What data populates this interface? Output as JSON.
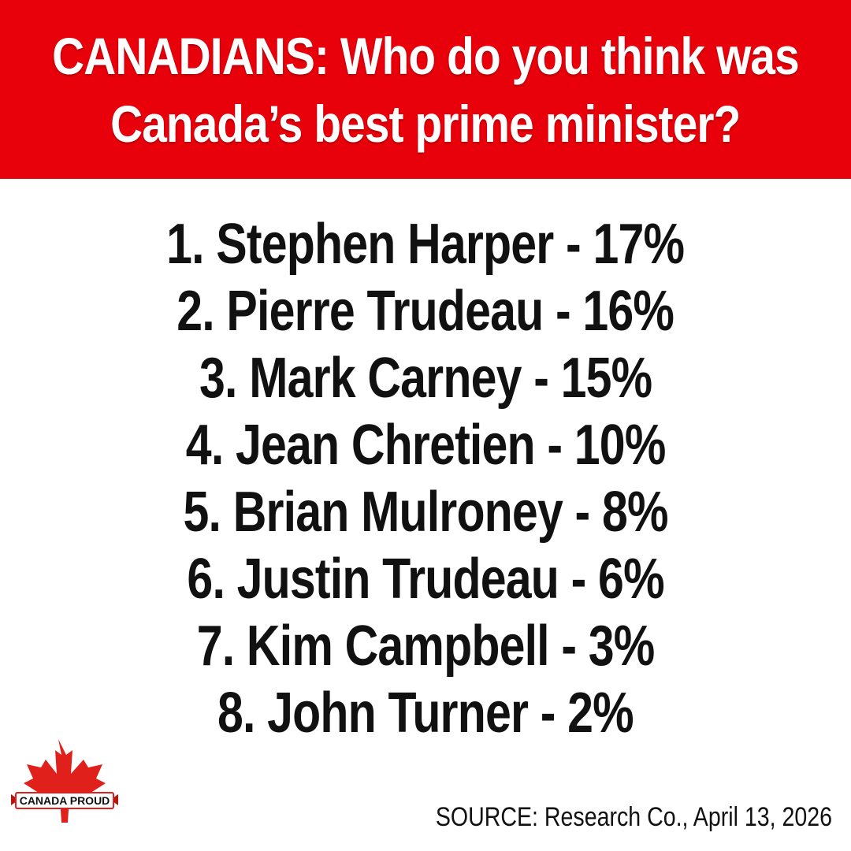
{
  "header": {
    "title_line1": "CANADIANS: Who do you think was",
    "title_line2": "Canada’s best prime minister?"
  },
  "ranking": [
    {
      "text": "1. Stephen Harper - 17%"
    },
    {
      "text": "2. Pierre Trudeau - 16%"
    },
    {
      "text": "3. Mark Carney - 15%"
    },
    {
      "text": "4. Jean Chretien - 10%"
    },
    {
      "text": "5. Brian Mulroney - 8%"
    },
    {
      "text": "6. Justin Trudeau - 6%"
    },
    {
      "text": "7. Kim Campbell - 3%"
    },
    {
      "text": "8. John Turner - 2%"
    }
  ],
  "logo": {
    "text": "CANADA PROUD",
    "icon": "maple-leaf-icon"
  },
  "source": "SOURCE: Research Co., April 13, 2026",
  "colors": {
    "banner_red": "#e8000b",
    "logo_red": "#e0201b",
    "text_dark": "#111111",
    "background": "#ffffff"
  }
}
